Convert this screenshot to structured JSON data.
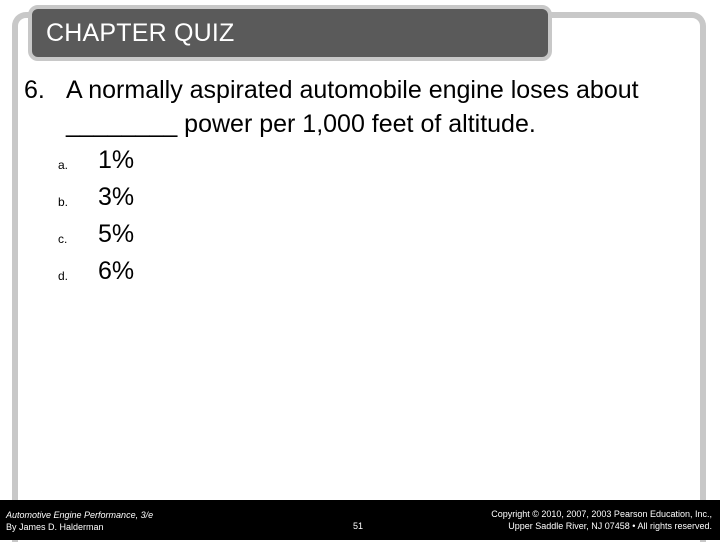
{
  "header": {
    "title": "CHAPTER QUIZ"
  },
  "question": {
    "number": "6.",
    "text": "A normally aspirated automobile engine loses about ________ power per 1,000 feet of altitude.",
    "options": [
      {
        "letter": "a.",
        "text": "1%"
      },
      {
        "letter": "b.",
        "text": "3%"
      },
      {
        "letter": "c.",
        "text": "5%"
      },
      {
        "letter": "d.",
        "text": "6%"
      }
    ]
  },
  "footer": {
    "book": "Automotive Engine Performance, 3/e",
    "author": "By James D. Halderman",
    "page": "51",
    "copyright_line1": "Copyright © 2010, 2007, 2003 Pearson Education, Inc.,",
    "copyright_line2": "Upper Saddle River, NJ 07458 • All rights reserved."
  }
}
